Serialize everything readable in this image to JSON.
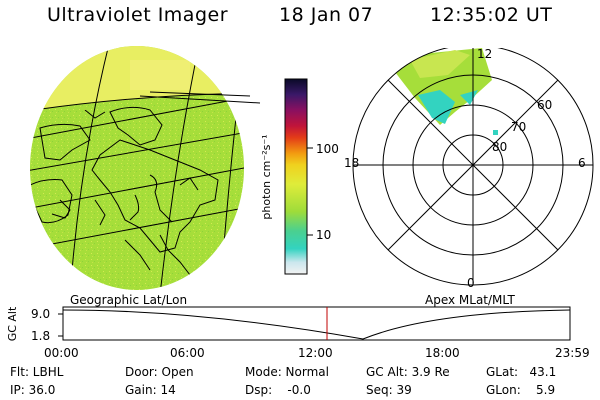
{
  "header": {
    "instrument": "Ultraviolet Imager",
    "date": "18 Jan 07",
    "time": "12:35:02 UT"
  },
  "colorbar": {
    "unit_label": "photon cm⁻²s⁻¹",
    "ticks": [
      "100",
      "10"
    ]
  },
  "polar": {
    "mlt_labels": [
      "12",
      "18",
      "6",
      "0"
    ],
    "lat_labels": [
      "60",
      "70",
      "80"
    ]
  },
  "panels": {
    "left_caption": "Geographic Lat/Lon",
    "right_caption": "Apex MLat/MLT"
  },
  "altitude_plot": {
    "axis_label": "GC Alt",
    "y_ticks": [
      "9.0",
      "1.8"
    ],
    "x_ticks": [
      "00:00",
      "06:00",
      "12:00",
      "18:00",
      "23:59"
    ]
  },
  "footer": {
    "filter": "Flt: LBHL",
    "ip": "IP: 36.0",
    "door": "Door: Open",
    "gain": "Gain: 14",
    "mode": "Mode: Normal",
    "dsp": "Dsp:    -0.0",
    "gc_alt": "GC Alt: 3.9 Re",
    "seq": "Seq: 39",
    "glat": "GLat:   43.1",
    "glon": "GLon:    5.9"
  },
  "colors": {
    "fill_green": "#a6de3a",
    "fill_yellow": "#e6ee5c",
    "fill_cyan": "#33d3c0",
    "cursor_red": "#c00000"
  }
}
